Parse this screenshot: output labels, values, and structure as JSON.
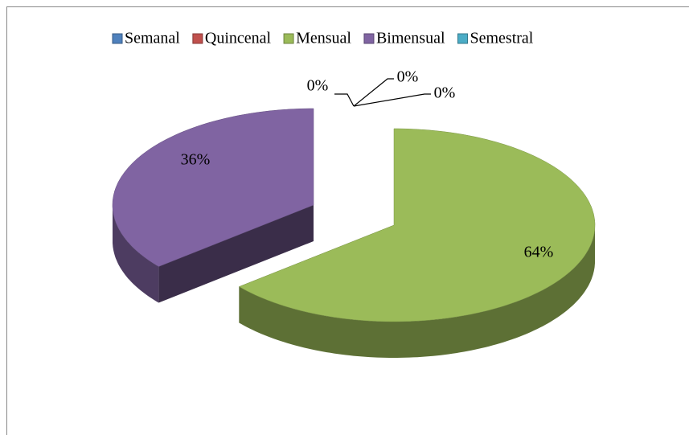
{
  "chart_data": {
    "type": "pie",
    "categories": [
      "Semanal",
      "Quincenal",
      "Mensual",
      "Bimensual",
      "Semestral"
    ],
    "values": [
      0,
      0,
      64,
      36,
      0
    ],
    "value_labels": [
      "0%",
      "0%",
      "64%",
      "36%",
      "0%"
    ],
    "colors": [
      "#4f81bd",
      "#c0504d",
      "#9bbb59",
      "#8064a2",
      "#4bacc6"
    ],
    "legend": "top"
  }
}
